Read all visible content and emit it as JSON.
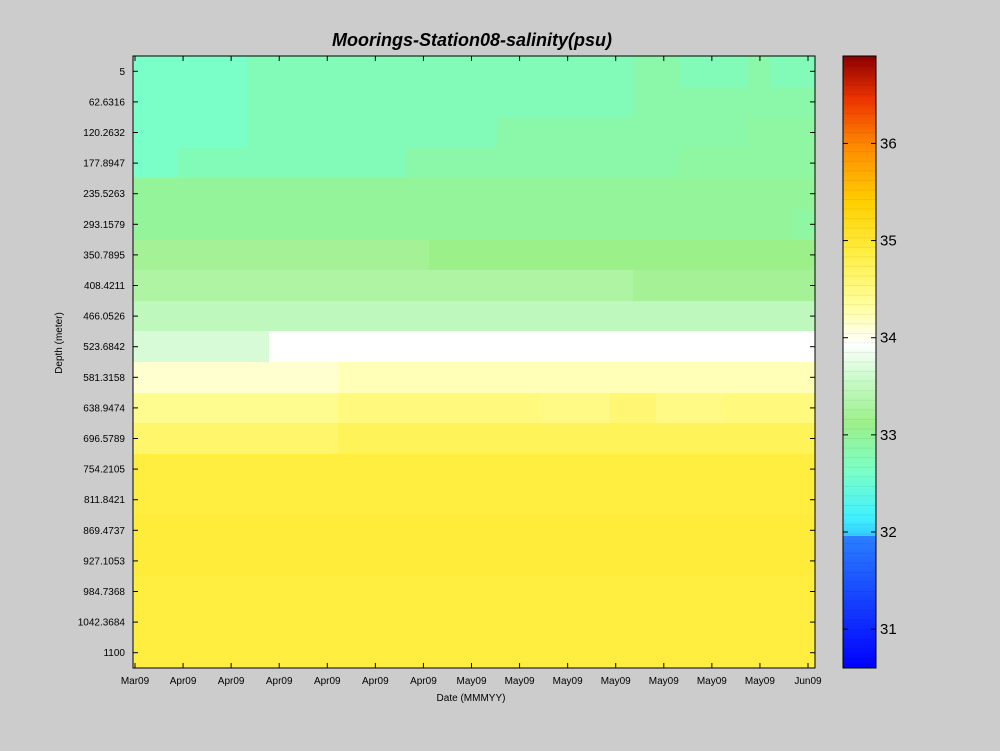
{
  "chart_data": {
    "type": "heatmap",
    "title": "Moorings-Station08-salinity(psu)",
    "xlabel": "Date (MMMYY)",
    "ylabel": "Depth (meter)",
    "x_tick_labels": [
      "Mar09",
      "Apr09",
      "Apr09",
      "Apr09",
      "Apr09",
      "Apr09",
      "Apr09",
      "May09",
      "May09",
      "May09",
      "May09",
      "May09",
      "May09",
      "May09",
      "Jun09"
    ],
    "y_tick_labels": [
      "5",
      "62.6316",
      "120.2632",
      "177.8947",
      "235.5263",
      "293.1579",
      "350.7895",
      "408.4211",
      "466.0526",
      "523.6842",
      "581.3158",
      "638.9474",
      "696.5789",
      "754.2105",
      "811.8421",
      "869.4737",
      "927.1053",
      "984.7368",
      "1042.3684",
      "1100"
    ],
    "depths": [
      5,
      62.6316,
      120.2632,
      177.8947,
      235.5263,
      293.1579,
      350.7895,
      408.4211,
      466.0526,
      523.6842,
      581.3158,
      638.9474,
      696.5789,
      754.2105,
      811.8421,
      869.4737,
      927.1053,
      984.7368,
      1042.3684,
      1100
    ],
    "time_columns": 30,
    "y_reversed": true,
    "grid": false,
    "colorbar": {
      "ticks": [
        31,
        32,
        33,
        34,
        35,
        36
      ],
      "range": [
        30.6,
        36.9
      ],
      "colormap": "jet-white"
    },
    "values": [
      [
        32.6,
        32.6,
        32.6,
        32.6,
        32.6,
        32.7,
        32.7,
        32.7,
        32.7,
        32.7,
        32.7,
        32.7,
        32.7,
        32.7,
        32.7,
        32.7,
        32.7,
        32.7,
        32.7,
        32.7,
        32.7,
        32.7,
        32.8,
        32.8,
        32.7,
        32.7,
        32.7,
        32.8,
        32.7,
        32.7
      ],
      [
        32.6,
        32.6,
        32.6,
        32.6,
        32.6,
        32.7,
        32.7,
        32.7,
        32.7,
        32.7,
        32.7,
        32.7,
        32.7,
        32.7,
        32.7,
        32.7,
        32.7,
        32.7,
        32.7,
        32.7,
        32.7,
        32.7,
        32.8,
        32.8,
        32.8,
        32.8,
        32.8,
        32.8,
        32.8,
        32.8
      ],
      [
        32.6,
        32.6,
        32.6,
        32.6,
        32.6,
        32.7,
        32.7,
        32.7,
        32.7,
        32.7,
        32.7,
        32.7,
        32.7,
        32.7,
        32.7,
        32.7,
        32.8,
        32.8,
        32.8,
        32.8,
        32.8,
        32.8,
        32.8,
        32.8,
        32.8,
        32.8,
        32.8,
        32.85,
        32.85,
        32.85
      ],
      [
        32.6,
        32.6,
        32.7,
        32.7,
        32.7,
        32.7,
        32.7,
        32.7,
        32.7,
        32.7,
        32.7,
        32.7,
        32.8,
        32.8,
        32.8,
        32.8,
        32.8,
        32.8,
        32.8,
        32.8,
        32.8,
        32.8,
        32.8,
        32.8,
        32.85,
        32.85,
        32.85,
        32.85,
        32.85,
        32.85
      ],
      [
        32.9,
        32.9,
        32.9,
        32.9,
        32.9,
        32.9,
        32.9,
        32.9,
        32.9,
        32.9,
        32.9,
        32.9,
        32.9,
        32.9,
        32.9,
        32.9,
        32.9,
        32.9,
        32.9,
        32.9,
        32.9,
        32.9,
        32.9,
        32.9,
        32.9,
        32.9,
        32.9,
        32.9,
        32.9,
        32.9
      ],
      [
        32.9,
        32.9,
        32.9,
        32.9,
        32.9,
        32.9,
        32.9,
        32.9,
        32.9,
        32.9,
        32.9,
        32.9,
        32.9,
        32.9,
        32.9,
        32.9,
        32.9,
        32.9,
        32.9,
        32.9,
        32.9,
        32.9,
        32.9,
        32.9,
        32.9,
        32.9,
        32.9,
        32.9,
        32.9,
        32.85
      ],
      [
        33.1,
        33.1,
        33.1,
        33.1,
        33.1,
        33.1,
        33.1,
        33.1,
        33.1,
        33.1,
        33.1,
        33.1,
        33.1,
        33.0,
        33.0,
        33.0,
        33.0,
        33.0,
        33.0,
        33.0,
        33.0,
        33.0,
        33.0,
        33.0,
        33.0,
        33.0,
        33.0,
        33.0,
        33.0,
        33.0
      ],
      [
        33.2,
        33.2,
        33.2,
        33.2,
        33.2,
        33.2,
        33.2,
        33.2,
        33.2,
        33.2,
        33.2,
        33.2,
        33.2,
        33.2,
        33.2,
        33.2,
        33.2,
        33.2,
        33.2,
        33.2,
        33.2,
        33.2,
        33.1,
        33.1,
        33.1,
        33.1,
        33.1,
        33.1,
        33.1,
        33.1
      ],
      [
        33.4,
        33.4,
        33.4,
        33.4,
        33.4,
        33.4,
        33.4,
        33.4,
        33.4,
        33.4,
        33.4,
        33.4,
        33.4,
        33.4,
        33.4,
        33.4,
        33.4,
        33.4,
        33.4,
        33.4,
        33.4,
        33.4,
        33.4,
        33.4,
        33.4,
        33.4,
        33.4,
        33.4,
        33.4,
        33.4
      ],
      [
        33.6,
        33.6,
        33.6,
        33.6,
        33.6,
        33.6,
        33.9,
        33.9,
        33.9,
        33.9,
        33.9,
        33.9,
        33.9,
        33.9,
        33.9,
        33.9,
        33.9,
        33.9,
        33.9,
        33.9,
        33.9,
        33.9,
        33.9,
        33.9,
        33.9,
        33.9,
        33.9,
        33.9,
        33.9,
        33.9
      ],
      [
        34.1,
        34.1,
        34.1,
        34.1,
        34.1,
        34.1,
        34.1,
        34.1,
        34.1,
        34.2,
        34.2,
        34.2,
        34.2,
        34.2,
        34.2,
        34.2,
        34.2,
        34.2,
        34.2,
        34.2,
        34.2,
        34.2,
        34.2,
        34.2,
        34.2,
        34.2,
        34.2,
        34.2,
        34.2,
        34.2
      ],
      [
        34.4,
        34.4,
        34.4,
        34.4,
        34.4,
        34.4,
        34.4,
        34.4,
        34.4,
        34.5,
        34.5,
        34.5,
        34.5,
        34.5,
        34.5,
        34.5,
        34.5,
        34.5,
        34.45,
        34.45,
        34.45,
        34.55,
        34.55,
        34.45,
        34.45,
        34.45,
        34.5,
        34.5,
        34.5,
        34.5
      ],
      [
        34.6,
        34.6,
        34.6,
        34.6,
        34.6,
        34.6,
        34.6,
        34.6,
        34.6,
        34.7,
        34.7,
        34.7,
        34.7,
        34.7,
        34.7,
        34.7,
        34.7,
        34.7,
        34.7,
        34.7,
        34.7,
        34.7,
        34.7,
        34.7,
        34.7,
        34.7,
        34.7,
        34.7,
        34.7,
        34.7
      ],
      [
        34.85,
        34.85,
        34.85,
        34.85,
        34.85,
        34.85,
        34.85,
        34.85,
        34.85,
        34.85,
        34.85,
        34.85,
        34.85,
        34.85,
        34.85,
        34.85,
        34.85,
        34.85,
        34.85,
        34.85,
        34.85,
        34.85,
        34.85,
        34.85,
        34.85,
        34.85,
        34.85,
        34.85,
        34.85,
        34.85
      ],
      [
        34.85,
        34.85,
        34.85,
        34.85,
        34.85,
        34.85,
        34.85,
        34.85,
        34.85,
        34.85,
        34.85,
        34.85,
        34.85,
        34.85,
        34.85,
        34.85,
        34.85,
        34.85,
        34.85,
        34.85,
        34.85,
        34.85,
        34.85,
        34.85,
        34.85,
        34.85,
        34.85,
        34.85,
        34.85,
        34.85
      ],
      [
        34.9,
        34.9,
        34.9,
        34.9,
        34.9,
        34.9,
        34.9,
        34.9,
        34.9,
        34.9,
        34.9,
        34.9,
        34.9,
        34.9,
        34.9,
        34.9,
        34.9,
        34.9,
        34.9,
        34.9,
        34.9,
        34.9,
        34.9,
        34.9,
        34.9,
        34.9,
        34.9,
        34.9,
        34.9,
        34.9
      ],
      [
        34.9,
        34.9,
        34.9,
        34.9,
        34.9,
        34.9,
        34.9,
        34.9,
        34.9,
        34.9,
        34.9,
        34.9,
        34.9,
        34.9,
        34.9,
        34.9,
        34.9,
        34.9,
        34.9,
        34.9,
        34.9,
        34.9,
        34.9,
        34.9,
        34.9,
        34.9,
        34.9,
        34.9,
        34.9,
        34.9
      ],
      [
        34.85,
        34.85,
        34.85,
        34.85,
        34.85,
        34.85,
        34.85,
        34.85,
        34.85,
        34.85,
        34.85,
        34.85,
        34.85,
        34.85,
        34.85,
        34.85,
        34.85,
        34.85,
        34.85,
        34.85,
        34.85,
        34.85,
        34.85,
        34.85,
        34.85,
        34.85,
        34.85,
        34.85,
        34.85,
        34.85
      ],
      [
        34.85,
        34.85,
        34.85,
        34.85,
        34.85,
        34.85,
        34.85,
        34.85,
        34.85,
        34.85,
        34.85,
        34.85,
        34.85,
        34.85,
        34.85,
        34.85,
        34.85,
        34.85,
        34.85,
        34.85,
        34.85,
        34.85,
        34.85,
        34.85,
        34.85,
        34.85,
        34.85,
        34.85,
        34.85,
        34.85
      ],
      [
        34.85,
        34.85,
        34.85,
        34.85,
        34.85,
        34.85,
        34.85,
        34.85,
        34.85,
        34.85,
        34.85,
        34.85,
        34.85,
        34.85,
        34.85,
        34.85,
        34.85,
        34.85,
        34.85,
        34.85,
        34.85,
        34.85,
        34.85,
        34.85,
        34.85,
        34.85,
        34.85,
        34.85,
        34.85,
        34.85
      ]
    ]
  }
}
